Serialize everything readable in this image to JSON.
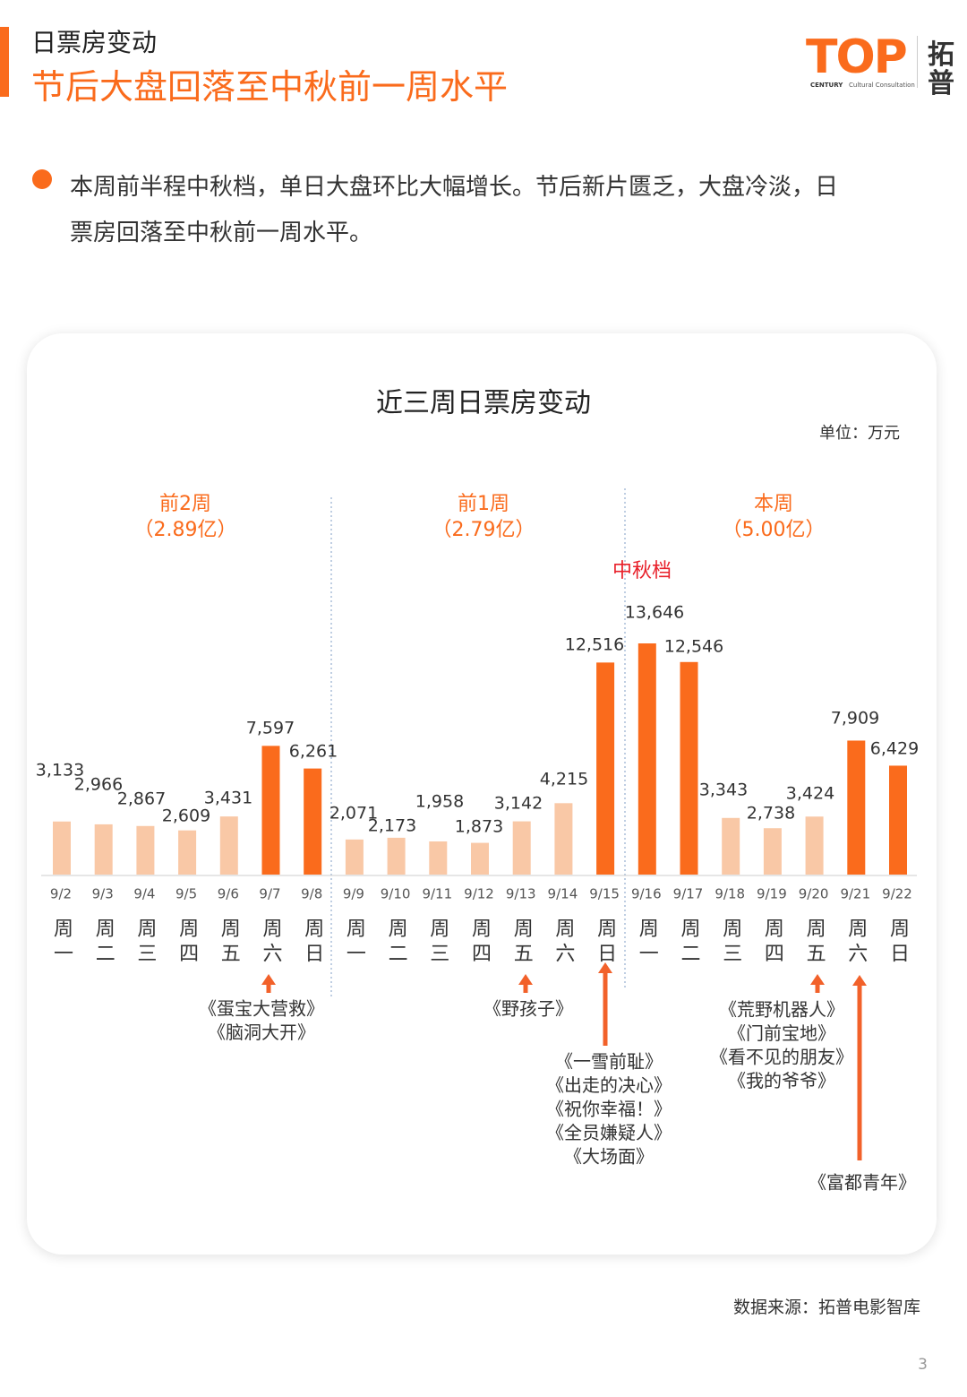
{
  "header": {
    "title": "日票房变动",
    "subtitle": "节后大盘回落至中秋前一周水平"
  },
  "logo": {
    "mark": "TOP",
    "name_top": "拓",
    "name_bottom": "普",
    "tag_a": "CENTURY",
    "tag_b": "Cultural Consultation"
  },
  "bullet": {
    "lines": [
      "本周前半程中秋档，单日大盘环比大幅增长。节后新片匮乏，大盘冷淡，日",
      "票房回落至中秋前一周水平。"
    ]
  },
  "chart_data": {
    "type": "bar",
    "title": "近三周日票房变动",
    "unit": "单位：万元",
    "categories": [
      "9/2",
      "9/3",
      "9/4",
      "9/5",
      "9/6",
      "9/7",
      "9/8",
      "9/9",
      "9/10",
      "9/11",
      "9/12",
      "9/13",
      "9/14",
      "9/15",
      "9/16",
      "9/17",
      "9/18",
      "9/19",
      "9/20",
      "9/21",
      "9/22"
    ],
    "weekdays": [
      "周一",
      "周二",
      "周三",
      "周四",
      "周五",
      "周六",
      "周日",
      "周一",
      "周二",
      "周三",
      "周四",
      "周五",
      "周六",
      "周日",
      "周一",
      "周二",
      "周三",
      "周四",
      "周五",
      "周六",
      "周日"
    ],
    "values": [
      3133,
      2966,
      2867,
      2609,
      3431,
      7597,
      6261,
      2071,
      2173,
      1958,
      1873,
      3142,
      4215,
      12516,
      13646,
      12546,
      3343,
      2738,
      3424,
      7909,
      6429
    ],
    "value_labels": [
      "3,133",
      "2,966",
      "2,867",
      "2,609",
      "3,431",
      "7,597",
      "6,261",
      "2,071",
      "2,173",
      "1,958",
      "1,873",
      "3,142",
      "4,215",
      "12,516",
      "13,646",
      "12,546",
      "3,343",
      "2,738",
      "3,424",
      "7,909",
      "6,429"
    ],
    "colors": [
      "#f9c8a6",
      "#f9c8a6",
      "#f9c8a6",
      "#f9c8a6",
      "#f9c8a6",
      "#fa6b1c",
      "#fa6b1c",
      "#f9c8a6",
      "#f9c8a6",
      "#f9c8a6",
      "#f9c8a6",
      "#f9c8a6",
      "#f9c8a6",
      "#fa6b1c",
      "#fa6b1c",
      "#fa6b1c",
      "#f9c8a6",
      "#f9c8a6",
      "#f9c8a6",
      "#fa6b1c",
      "#fa6b1c"
    ],
    "groups": [
      {
        "name": "前2周",
        "total": "（2.89亿）"
      },
      {
        "name": "前1周",
        "total": "（2.79亿）"
      },
      {
        "name": "本周",
        "total": "（5.00亿）"
      }
    ],
    "holiday_label": "中秋档",
    "annotations": [
      [
        "《蛋宝大营救》",
        "《脑洞大开》"
      ],
      [
        "《野孩子》"
      ],
      [
        "《一雪前耻》",
        "《出走的决心》",
        "《祝你幸福！》",
        "《全员嫌疑人》",
        "《大场面》"
      ],
      [
        "《荒野机器人》",
        "《门前宝地》",
        "《看不见的朋友》",
        "《我的爷爷》"
      ],
      [
        "《富都青年》"
      ]
    ]
  },
  "source": "数据来源：拓普电影智库",
  "page_number": "3"
}
